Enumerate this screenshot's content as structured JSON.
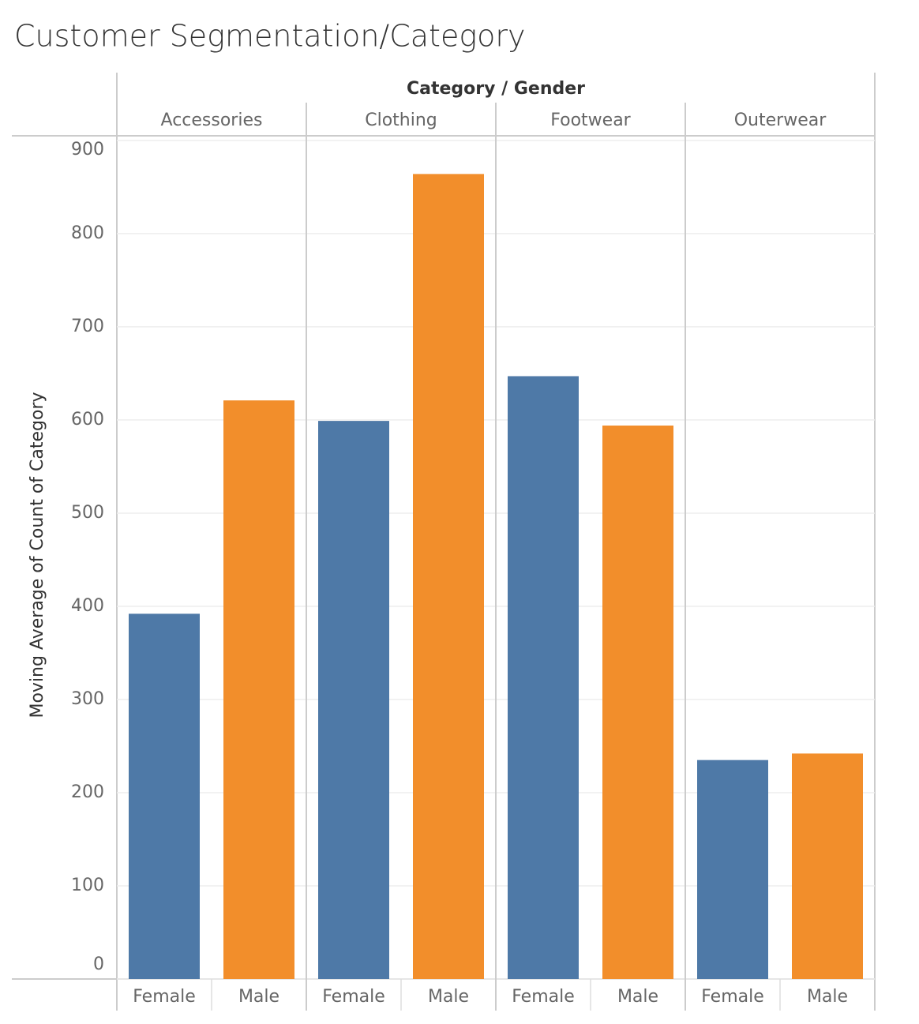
{
  "chart_data": {
    "type": "bar",
    "title": "Customer Segmentation/Category",
    "x_label": "Category / Gender",
    "y_label": "Moving Average of Count of Category",
    "categories": [
      "Accessories",
      "Clothing",
      "Footwear",
      "Outerwear"
    ],
    "series": [
      {
        "name": "Female",
        "color": "#4e79a7",
        "values": [
          392,
          599,
          647,
          235
        ]
      },
      {
        "name": "Male",
        "color": "#f28e2b",
        "values": [
          621,
          864,
          594,
          242
        ]
      }
    ],
    "ylim": [
      0,
      905
    ],
    "yticks": [
      0,
      100,
      200,
      300,
      400,
      500,
      600,
      700,
      800,
      900
    ],
    "grid": true
  }
}
